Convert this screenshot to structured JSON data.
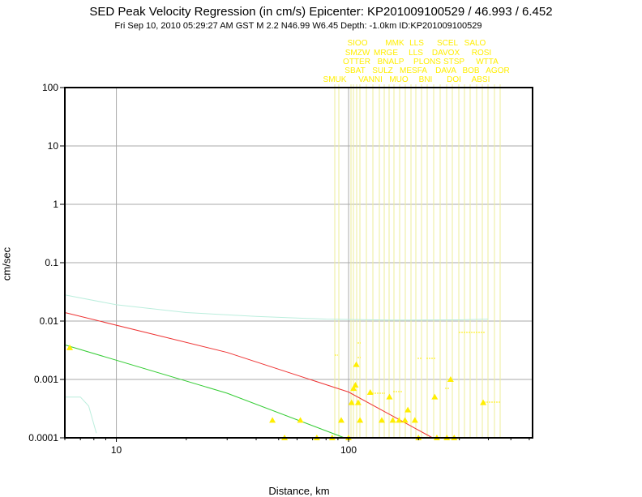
{
  "chart_data": {
    "type": "scatter",
    "title": "SED Peak Velocity Regression (in cm/s) Epicenter: KP201009100529 / 46.993 / 6.452",
    "subtitle": "Fri Sep 10, 2010 05:29:27 AM GST   M 2.2   N46.99 W6.45   Depth: -1.0km   ID:KP201009100529",
    "xlabel": "Distance, km",
    "ylabel": "cm/sec",
    "xscale": "log",
    "yscale": "log",
    "xlim": [
      6,
      620
    ],
    "ylim": [
      0.0001,
      100
    ],
    "grid": true,
    "x_ticks": [
      {
        "value": 10,
        "label": "10"
      },
      {
        "value": 100,
        "label": "100"
      }
    ],
    "y_ticks": [
      {
        "value": 100,
        "label": "100"
      },
      {
        "value": 10,
        "label": "10"
      },
      {
        "value": 1,
        "label": "1"
      },
      {
        "value": 0.1,
        "label": "0.1"
      },
      {
        "value": 0.01,
        "label": "0.01"
      },
      {
        "value": 0.001,
        "label": "0.001"
      },
      {
        "value": 0.0001,
        "label": "0.0001"
      }
    ],
    "series": [
      {
        "color": "#ee3333",
        "kind": "line",
        "points": [
          [
            6,
            0.014
          ],
          [
            30,
            0.0029
          ],
          [
            100,
            0.00061
          ],
          [
            230,
            0.0001
          ]
        ]
      },
      {
        "color": "#33cc33",
        "kind": "line",
        "points": [
          [
            6,
            0.0039
          ],
          [
            30,
            0.00058
          ],
          [
            96,
            0.0001
          ]
        ]
      },
      {
        "color": "#bbeedd",
        "kind": "line",
        "points": [
          [
            6,
            0.028
          ],
          [
            10,
            0.019
          ],
          [
            20,
            0.014
          ],
          [
            40,
            0.012
          ],
          [
            80,
            0.0108
          ],
          [
            150,
            0.0104
          ],
          [
            300,
            0.0105
          ],
          [
            400,
            0.0108
          ]
        ]
      },
      {
        "color": "#bbeedd",
        "kind": "line",
        "points": [
          [
            6,
            0.0005
          ],
          [
            7,
            0.0005
          ],
          [
            7.6,
            0.00035
          ],
          [
            8.2,
            0.00012
          ]
        ]
      },
      {
        "color": "#ffee00",
        "kind": "markers",
        "points": [
          [
            6.3,
            0.0035
          ],
          [
            47,
            0.0002
          ],
          [
            53,
            0.0001
          ],
          [
            62,
            0.0002
          ],
          [
            73,
            0.0001
          ],
          [
            85,
            0.0001
          ],
          [
            93,
            0.0002
          ],
          [
            100,
            0.0001
          ],
          [
            103,
            0.0004
          ],
          [
            105,
            0.0007
          ],
          [
            107,
            0.0008
          ],
          [
            108,
            0.0018
          ],
          [
            110,
            0.0004
          ],
          [
            112,
            0.0002
          ],
          [
            124,
            0.0006
          ],
          [
            139,
            0.0002
          ],
          [
            150,
            0.0005
          ],
          [
            155,
            0.0002
          ],
          [
            165,
            0.0002
          ],
          [
            175,
            0.0002
          ],
          [
            180,
            0.0003
          ],
          [
            193,
            0.0002
          ],
          [
            200,
            0.0001
          ],
          [
            235,
            0.0005
          ],
          [
            240,
            0.0001
          ],
          [
            265,
            0.0001
          ],
          [
            275,
            0.001
          ],
          [
            285,
            0.0001
          ],
          [
            380,
            0.0004
          ]
        ]
      }
    ],
    "station_labels": [
      {
        "row": 1,
        "x": 441,
        "text": "SIOO"
      },
      {
        "row": 1,
        "x": 487,
        "text": "MMK"
      },
      {
        "row": 1,
        "x": 514,
        "text": "LLS"
      },
      {
        "row": 1,
        "x": 552,
        "text": "SCEL"
      },
      {
        "row": 1,
        "x": 586,
        "text": "SALO"
      },
      {
        "row": 2,
        "x": 441,
        "text": "SMZW"
      },
      {
        "row": 2,
        "x": 476,
        "text": "MRGE"
      },
      {
        "row": 2,
        "x": 513,
        "text": "LLS"
      },
      {
        "row": 2,
        "x": 550,
        "text": "DAVOX"
      },
      {
        "row": 2,
        "x": 594,
        "text": "ROSI"
      },
      {
        "row": 3,
        "x": 440,
        "text": "OTTER"
      },
      {
        "row": 3,
        "x": 482,
        "text": "BNALP"
      },
      {
        "row": 3,
        "x": 527,
        "text": "PLONS"
      },
      {
        "row": 3,
        "x": 560,
        "text": "STSP"
      },
      {
        "row": 3,
        "x": 601,
        "text": "WTTA"
      },
      {
        "row": 4,
        "x": 438,
        "text": "SBAT"
      },
      {
        "row": 4,
        "x": 472,
        "text": "SULZ"
      },
      {
        "row": 4,
        "x": 510,
        "text": "MESFA"
      },
      {
        "row": 4,
        "x": 550,
        "text": "DAVA"
      },
      {
        "row": 4,
        "x": 581,
        "text": "BOB"
      },
      {
        "row": 4,
        "x": 614,
        "text": "AGOR"
      },
      {
        "row": 5,
        "x": 413,
        "text": "SMUK"
      },
      {
        "row": 5,
        "x": 457,
        "text": "VANNI"
      },
      {
        "row": 5,
        "x": 492,
        "text": "MUO"
      },
      {
        "row": 5,
        "x": 525,
        "text": "BNI"
      },
      {
        "row": 5,
        "x": 560,
        "text": "DOI"
      },
      {
        "row": 5,
        "x": 593,
        "text": "ABSI"
      }
    ],
    "station_lines_x": [
      413,
      418,
      433,
      436,
      440,
      444,
      452,
      460,
      468,
      474,
      480,
      486,
      493,
      500,
      507,
      513,
      520,
      527,
      535,
      543,
      551,
      558,
      566,
      573,
      580,
      588,
      595,
      602,
      610,
      617
    ],
    "station_pointers": [
      {
        "x": 413,
        "y": 438,
        "dx": 4
      },
      {
        "x": 441,
        "y": 423,
        "dx": 4
      },
      {
        "x": 441,
        "y": 441,
        "dx": 4
      },
      {
        "x": 515,
        "y": 442,
        "dx": 6
      },
      {
        "x": 526,
        "y": 442,
        "dx": 12
      },
      {
        "x": 566,
        "y": 410,
        "dx": 32
      },
      {
        "x": 459,
        "y": 485,
        "dx": 16
      },
      {
        "x": 485,
        "y": 483,
        "dx": 12
      },
      {
        "x": 549,
        "y": 479,
        "dx": 6
      },
      {
        "x": 597,
        "y": 496,
        "dx": 20
      }
    ]
  }
}
